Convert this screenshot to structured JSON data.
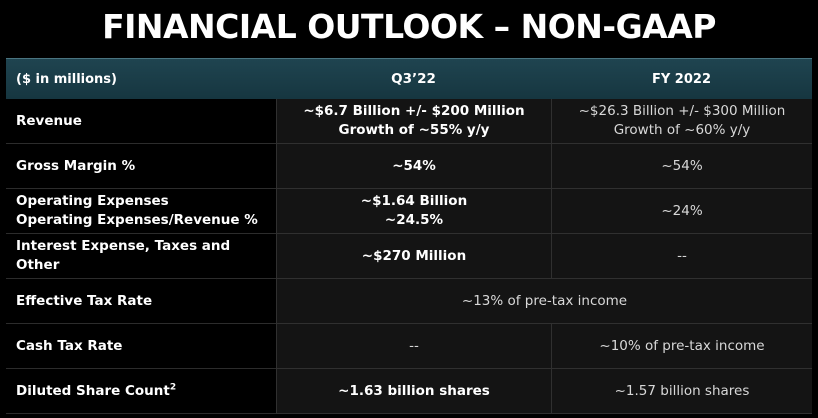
{
  "title": "FINANCIAL OUTLOOK – NON-GAAP",
  "header": {
    "col1": "($ in millions)",
    "col2": "Q3’22",
    "col3": "FY 2022"
  },
  "rows": [
    {
      "label": [
        "Revenue"
      ],
      "q3": [
        "~$6.7 Billion +/- $200 Million",
        "Growth of ~55% y/y"
      ],
      "fy": [
        "~$26.3 Billion +/- $300 Million",
        "Growth of ~60% y/y"
      ]
    },
    {
      "label": [
        "Gross Margin %"
      ],
      "q3": [
        "~54%"
      ],
      "fy": [
        "~54%"
      ]
    },
    {
      "label": [
        "Operating Expenses",
        "Operating Expenses/Revenue %"
      ],
      "q3": [
        "~$1.64 Billion",
        "~24.5%"
      ],
      "fy": [
        "~24%"
      ]
    },
    {
      "label": [
        "Interest Expense, Taxes and Other"
      ],
      "q3": [
        "~$270 Million"
      ],
      "fy": [
        "--"
      ]
    },
    {
      "label": [
        "Effective Tax Rate"
      ],
      "span": "~13% of pre-tax income"
    },
    {
      "label": [
        "Cash Tax Rate"
      ],
      "q3": [
        "--"
      ],
      "fy": [
        "~10% of pre-tax income"
      ]
    },
    {
      "label": [
        "Diluted Share Count"
      ],
      "label_sup": "2",
      "q3": [
        "~1.63 billion shares"
      ],
      "fy": [
        "~1.57 billion shares"
      ]
    }
  ]
}
